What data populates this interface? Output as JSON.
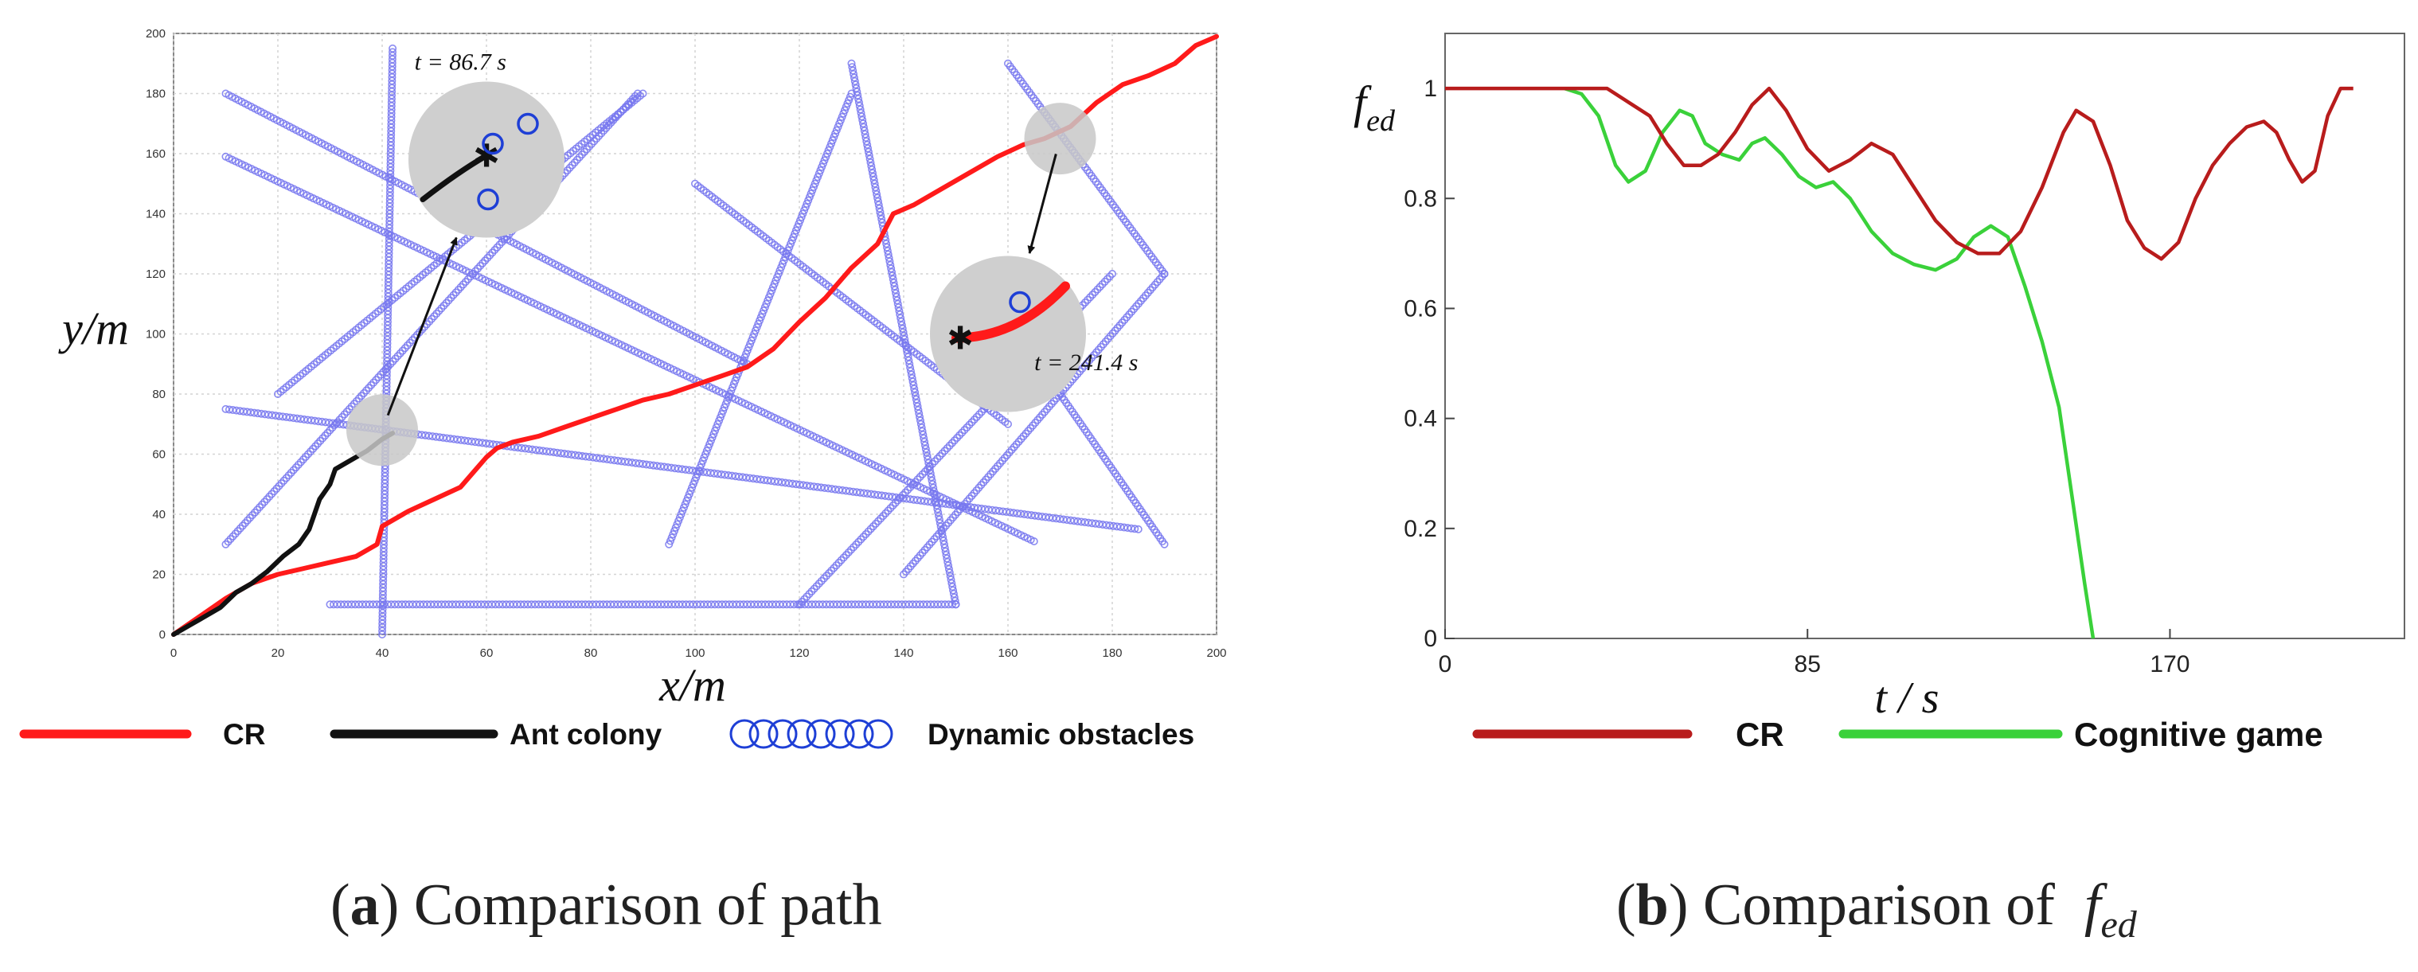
{
  "chart_data": [
    {
      "id": "path",
      "type": "line",
      "panel_label": "a",
      "caption_text": "Comparison of path",
      "xlabel": "x/m",
      "ylabel": "y/m",
      "xlim": [
        0,
        200
      ],
      "ylim": [
        0,
        200
      ],
      "xticks": [
        0,
        20,
        40,
        60,
        80,
        100,
        120,
        140,
        160,
        180,
        200
      ],
      "yticks": [
        0,
        20,
        40,
        60,
        80,
        100,
        120,
        140,
        160,
        180,
        200
      ],
      "grid": true,
      "series": [
        {
          "name": "CR",
          "color": "#ff1a1a",
          "points": [
            [
              0,
              0
            ],
            [
              5,
              6
            ],
            [
              10,
              12
            ],
            [
              15,
              17
            ],
            [
              20,
              20
            ],
            [
              25,
              22
            ],
            [
              30,
              24
            ],
            [
              35,
              26
            ],
            [
              39,
              30
            ],
            [
              40,
              36
            ],
            [
              45,
              41
            ],
            [
              50,
              45
            ],
            [
              55,
              49
            ],
            [
              58,
              55
            ],
            [
              60,
              59
            ],
            [
              62,
              62
            ],
            [
              65,
              64
            ],
            [
              70,
              66
            ],
            [
              75,
              69
            ],
            [
              80,
              72
            ],
            [
              85,
              75
            ],
            [
              90,
              78
            ],
            [
              95,
              80
            ],
            [
              100,
              83
            ],
            [
              105,
              86
            ],
            [
              110,
              89
            ],
            [
              115,
              95
            ],
            [
              120,
              104
            ],
            [
              125,
              112
            ],
            [
              130,
              122
            ],
            [
              135,
              130
            ],
            [
              138,
              140
            ],
            [
              142,
              143
            ],
            [
              148,
              149
            ],
            [
              153,
              154
            ],
            [
              158,
              159
            ],
            [
              163,
              163
            ],
            [
              167,
              165
            ],
            [
              172,
              169
            ],
            [
              177,
              177
            ],
            [
              182,
              183
            ],
            [
              187,
              186
            ],
            [
              192,
              190
            ],
            [
              196,
              196
            ],
            [
              200,
              199
            ]
          ]
        },
        {
          "name": "Ant colony",
          "color": "#111111",
          "points": [
            [
              0,
              0
            ],
            [
              3,
              3
            ],
            [
              6,
              6
            ],
            [
              9,
              9
            ],
            [
              12,
              14
            ],
            [
              15,
              17
            ],
            [
              18,
              21
            ],
            [
              21,
              26
            ],
            [
              24,
              30
            ],
            [
              26,
              35
            ],
            [
              27,
              40
            ],
            [
              28,
              45
            ],
            [
              30,
              50
            ],
            [
              31,
              55
            ],
            [
              34,
              58
            ],
            [
              37,
              61
            ],
            [
              40,
              65
            ],
            [
              42,
              67
            ]
          ]
        }
      ],
      "obstacles_legend": "Dynamic obstacles",
      "obstacle_color": "#7777ee",
      "obstacle_tracks": [
        [
          [
            10,
            180
          ],
          [
            110,
            90
          ]
        ],
        [
          [
            10,
            159
          ],
          [
            165,
            31
          ]
        ],
        [
          [
            10,
            75
          ],
          [
            185,
            35
          ]
        ],
        [
          [
            10,
            30
          ],
          [
            89,
            180
          ]
        ],
        [
          [
            20,
            80
          ],
          [
            90,
            180
          ]
        ],
        [
          [
            40,
            0
          ],
          [
            42,
            195
          ]
        ],
        [
          [
            30,
            10
          ],
          [
            150,
            10
          ]
        ],
        [
          [
            95,
            30
          ],
          [
            130,
            180
          ]
        ],
        [
          [
            130,
            190
          ],
          [
            150,
            10
          ]
        ],
        [
          [
            120,
            10
          ],
          [
            180,
            120
          ]
        ],
        [
          [
            140,
            20
          ],
          [
            190,
            120
          ]
        ],
        [
          [
            160,
            190
          ],
          [
            190,
            120
          ]
        ],
        [
          [
            170,
            80
          ],
          [
            190,
            30
          ]
        ],
        [
          [
            100,
            150
          ],
          [
            160,
            70
          ]
        ]
      ],
      "annotations": [
        {
          "text": "t = 86.7 s",
          "x": 55,
          "y": 188
        },
        {
          "text": "t = 241.4 s",
          "x": 175,
          "y": 88
        }
      ],
      "zoom_circles": [
        {
          "center": [
            40,
            68
          ],
          "zoom_center": [
            60,
            158
          ],
          "path_color": "#111111"
        },
        {
          "center": [
            170,
            165
          ],
          "zoom_center": [
            160,
            100
          ],
          "path_color": "#ff1a1a"
        }
      ],
      "legend": [
        "CR",
        "Ant colony",
        "Dynamic obstacles"
      ]
    },
    {
      "id": "fed",
      "type": "line",
      "panel_label": "b",
      "caption_text": "Comparison of",
      "caption_symbol": "f",
      "caption_subscript": "ed",
      "xlabel": "t / s",
      "ylabel_main": "f",
      "ylabel_sub": "ed",
      "xlim": [
        0,
        225
      ],
      "ylim": [
        0,
        1.1
      ],
      "xticks": [
        0,
        85,
        170
      ],
      "yticks": [
        0,
        0.2,
        0.4,
        0.6,
        0.8,
        1
      ],
      "grid": false,
      "series": [
        {
          "name": "CR",
          "color": "#b81c1c",
          "points": [
            [
              0,
              1
            ],
            [
              10,
              1
            ],
            [
              20,
              1
            ],
            [
              30,
              1
            ],
            [
              38,
              1
            ],
            [
              44,
              0.97
            ],
            [
              48,
              0.95
            ],
            [
              52,
              0.9
            ],
            [
              56,
              0.86
            ],
            [
              60,
              0.86
            ],
            [
              64,
              0.88
            ],
            [
              68,
              0.92
            ],
            [
              72,
              0.97
            ],
            [
              76,
              1
            ],
            [
              80,
              0.96
            ],
            [
              85,
              0.89
            ],
            [
              90,
              0.85
            ],
            [
              95,
              0.87
            ],
            [
              100,
              0.9
            ],
            [
              105,
              0.88
            ],
            [
              110,
              0.82
            ],
            [
              115,
              0.76
            ],
            [
              120,
              0.72
            ],
            [
              125,
              0.7
            ],
            [
              130,
              0.7
            ],
            [
              135,
              0.74
            ],
            [
              140,
              0.82
            ],
            [
              145,
              0.92
            ],
            [
              148,
              0.96
            ],
            [
              152,
              0.94
            ],
            [
              156,
              0.86
            ],
            [
              160,
              0.76
            ],
            [
              164,
              0.71
            ],
            [
              168,
              0.69
            ],
            [
              172,
              0.72
            ],
            [
              176,
              0.8
            ],
            [
              180,
              0.86
            ],
            [
              184,
              0.9
            ],
            [
              188,
              0.93
            ],
            [
              192,
              0.94
            ],
            [
              195,
              0.92
            ],
            [
              198,
              0.87
            ],
            [
              201,
              0.83
            ],
            [
              204,
              0.85
            ],
            [
              207,
              0.95
            ],
            [
              210,
              1
            ],
            [
              213,
              1
            ]
          ]
        },
        {
          "name": "Cognitive game",
          "color": "#3ad13a",
          "points": [
            [
              28,
              1
            ],
            [
              32,
              0.99
            ],
            [
              36,
              0.95
            ],
            [
              40,
              0.86
            ],
            [
              43,
              0.83
            ],
            [
              47,
              0.85
            ],
            [
              51,
              0.92
            ],
            [
              55,
              0.96
            ],
            [
              58,
              0.95
            ],
            [
              61,
              0.9
            ],
            [
              65,
              0.88
            ],
            [
              69,
              0.87
            ],
            [
              72,
              0.9
            ],
            [
              75,
              0.91
            ],
            [
              79,
              0.88
            ],
            [
              83,
              0.84
            ],
            [
              87,
              0.82
            ],
            [
              91,
              0.83
            ],
            [
              95,
              0.8
            ],
            [
              100,
              0.74
            ],
            [
              105,
              0.7
            ],
            [
              110,
              0.68
            ],
            [
              115,
              0.67
            ],
            [
              120,
              0.69
            ],
            [
              124,
              0.73
            ],
            [
              128,
              0.75
            ],
            [
              132,
              0.73
            ],
            [
              136,
              0.64
            ],
            [
              140,
              0.54
            ],
            [
              144,
              0.42
            ],
            [
              147,
              0.26
            ],
            [
              150,
              0.1
            ],
            [
              152,
              0
            ]
          ]
        }
      ],
      "legend": [
        "CR",
        "Cognitive game"
      ]
    }
  ]
}
